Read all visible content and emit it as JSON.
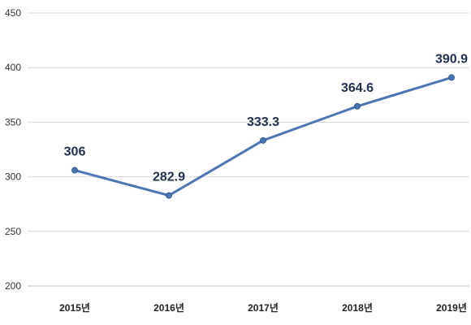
{
  "chart_data": {
    "type": "line",
    "title": "",
    "xlabel": "",
    "ylabel": "",
    "categories": [
      "2015년",
      "2016년",
      "2017년",
      "2018년",
      "2019년"
    ],
    "series": [
      {
        "values": [
          306,
          282.9,
          333.3,
          364.6,
          390.9
        ],
        "color": "#4a76b4"
      }
    ],
    "data_labels": [
      "306",
      "282.9",
      "333.3",
      "364.6",
      "390.9"
    ],
    "yticks": [
      200,
      250,
      300,
      350,
      400,
      450
    ],
    "ylim": [
      200,
      450
    ],
    "grid": true,
    "legend": "none"
  }
}
